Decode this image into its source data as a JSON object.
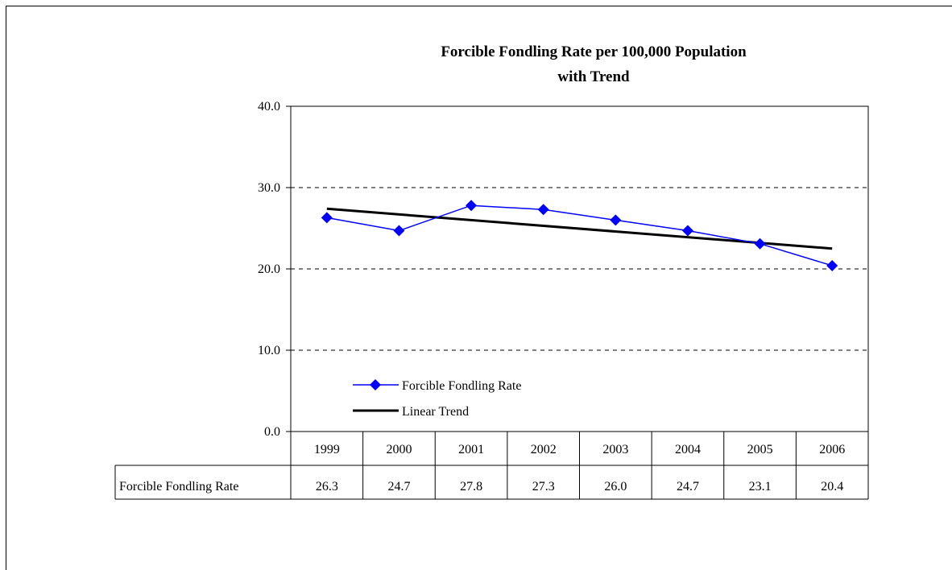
{
  "chart_data": {
    "type": "line",
    "title_line1": "Forcible Fondling Rate per 100,000 Population",
    "title_line2": "with Trend",
    "categories": [
      "1999",
      "2000",
      "2001",
      "2002",
      "2003",
      "2004",
      "2005",
      "2006"
    ],
    "ylim": [
      0,
      40
    ],
    "yticks": [
      "0.0",
      "10.0",
      "20.0",
      "30.0",
      "40.0"
    ],
    "ytick_values": [
      0,
      10,
      20,
      30,
      40
    ],
    "grid": "dashed horizontal",
    "legend_position": "lower-left",
    "series": [
      {
        "name": "Forcible Fondling Rate",
        "values": [
          26.3,
          24.7,
          27.8,
          27.3,
          26.0,
          24.7,
          23.1,
          20.4
        ],
        "table_values": [
          "26.3",
          "24.7",
          "27.8",
          "27.3",
          "26.0",
          "24.7",
          "23.1",
          "20.4"
        ],
        "color": "#0000ff",
        "marker": "diamond"
      },
      {
        "name": "Linear Trend",
        "start": 27.4,
        "end": 22.5,
        "color": "#000000"
      }
    ],
    "data_table": {
      "row_label": "Forcible Fondling Rate"
    }
  }
}
